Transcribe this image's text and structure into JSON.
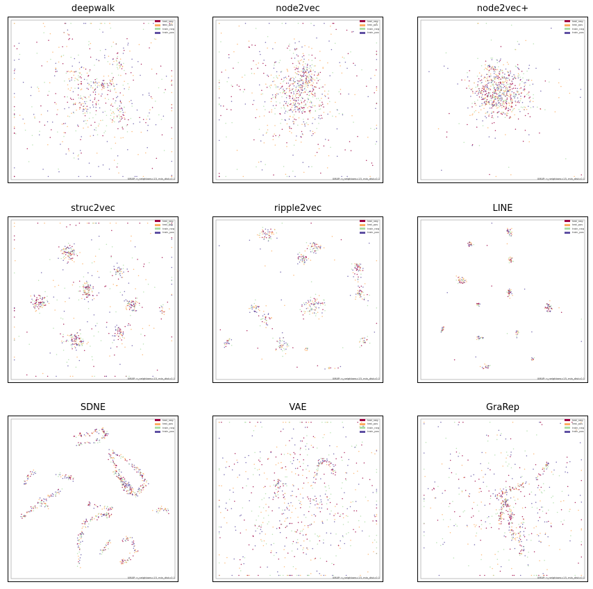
{
  "figure": {
    "legend_labels": [
      "test_neg",
      "test_pos",
      "train_neg",
      "train_pos"
    ],
    "legend_colors": [
      "#9e0142",
      "#fdae61",
      "#abdda4",
      "#5e4fa2"
    ],
    "umap_note": "UMAP: n_neighbors=15, min_dist=0.1"
  },
  "chart_data": [
    {
      "type": "scatter",
      "title": "deepwalk",
      "xlim": [
        0,
        1
      ],
      "ylim": [
        0,
        1
      ],
      "grid": false,
      "legend": "top-right",
      "series": [
        {
          "name": "test_neg"
        },
        {
          "name": "test_pos"
        },
        {
          "name": "train_neg"
        },
        {
          "name": "train_pos"
        }
      ],
      "clusters": [
        {
          "cx": 0.5,
          "cy": 0.52,
          "sx": 0.27,
          "sy": 0.27,
          "n": 420
        },
        {
          "cx": 0.55,
          "cy": 0.6,
          "sx": 0.06,
          "sy": 0.02,
          "n": 60
        },
        {
          "cx": 0.67,
          "cy": 0.42,
          "sx": 0.03,
          "sy": 0.05,
          "n": 50
        },
        {
          "cx": 0.42,
          "cy": 0.47,
          "sx": 0.04,
          "sy": 0.05,
          "n": 50
        },
        {
          "cx": 0.66,
          "cy": 0.72,
          "sx": 0.02,
          "sy": 0.03,
          "n": 25
        },
        {
          "cx": 0.38,
          "cy": 0.67,
          "sx": 0.03,
          "sy": 0.03,
          "n": 25
        }
      ]
    },
    {
      "type": "scatter",
      "title": "node2vec",
      "xlim": [
        0,
        1
      ],
      "ylim": [
        0,
        1
      ],
      "grid": false,
      "legend": "top-right",
      "series": [
        {
          "name": "test_neg"
        },
        {
          "name": "test_pos"
        },
        {
          "name": "train_neg"
        },
        {
          "name": "train_pos"
        }
      ],
      "clusters": [
        {
          "cx": 0.5,
          "cy": 0.5,
          "sx": 0.3,
          "sy": 0.28,
          "n": 320
        },
        {
          "cx": 0.5,
          "cy": 0.55,
          "sx": 0.08,
          "sy": 0.12,
          "n": 380
        },
        {
          "cx": 0.55,
          "cy": 0.65,
          "sx": 0.03,
          "sy": 0.06,
          "n": 90
        }
      ]
    },
    {
      "type": "scatter",
      "title": "node2vec+",
      "xlim": [
        0,
        1
      ],
      "ylim": [
        0,
        1
      ],
      "grid": false,
      "legend": "top-right",
      "series": [
        {
          "name": "test_neg"
        },
        {
          "name": "test_pos"
        },
        {
          "name": "train_neg"
        },
        {
          "name": "train_pos"
        }
      ],
      "clusters": [
        {
          "cx": 0.48,
          "cy": 0.55,
          "sx": 0.09,
          "sy": 0.08,
          "n": 620
        },
        {
          "cx": 0.5,
          "cy": 0.52,
          "sx": 0.22,
          "sy": 0.22,
          "n": 110
        },
        {
          "cx": 0.43,
          "cy": 0.7,
          "sx": 0.02,
          "sy": 0.015,
          "n": 25
        }
      ]
    },
    {
      "type": "scatter",
      "title": "struc2vec",
      "xlim": [
        0,
        1
      ],
      "ylim": [
        0,
        1
      ],
      "grid": false,
      "legend": "top-right",
      "series": [
        {
          "name": "test_neg"
        },
        {
          "name": "test_pos"
        },
        {
          "name": "train_neg"
        },
        {
          "name": "train_pos"
        }
      ],
      "clusters": [
        {
          "cx": 0.5,
          "cy": 0.5,
          "sx": 0.3,
          "sy": 0.3,
          "n": 220
        },
        {
          "cx": 0.35,
          "cy": 0.79,
          "sx": 0.025,
          "sy": 0.025,
          "n": 80
        },
        {
          "cx": 0.47,
          "cy": 0.56,
          "sx": 0.025,
          "sy": 0.025,
          "n": 80
        },
        {
          "cx": 0.17,
          "cy": 0.48,
          "sx": 0.025,
          "sy": 0.025,
          "n": 80
        },
        {
          "cx": 0.74,
          "cy": 0.47,
          "sx": 0.02,
          "sy": 0.02,
          "n": 60
        },
        {
          "cx": 0.4,
          "cy": 0.24,
          "sx": 0.03,
          "sy": 0.025,
          "n": 90
        },
        {
          "cx": 0.66,
          "cy": 0.68,
          "sx": 0.02,
          "sy": 0.02,
          "n": 40
        },
        {
          "cx": 0.66,
          "cy": 0.29,
          "sx": 0.02,
          "sy": 0.02,
          "n": 40
        },
        {
          "cx": 0.92,
          "cy": 0.43,
          "sx": 0.01,
          "sy": 0.02,
          "n": 15
        }
      ]
    },
    {
      "type": "scatter",
      "title": "ripple2vec",
      "xlim": [
        0,
        1
      ],
      "ylim": [
        0,
        1
      ],
      "grid": false,
      "legend": "top-right",
      "series": [
        {
          "name": "test_neg"
        },
        {
          "name": "test_pos"
        },
        {
          "name": "train_neg"
        },
        {
          "name": "train_pos"
        }
      ],
      "clusters": [
        {
          "cx": 0.5,
          "cy": 0.5,
          "sx": 0.3,
          "sy": 0.3,
          "n": 40
        },
        {
          "cx": 0.31,
          "cy": 0.91,
          "sx": 0.025,
          "sy": 0.02,
          "n": 50
        },
        {
          "cx": 0.6,
          "cy": 0.83,
          "sx": 0.025,
          "sy": 0.015,
          "n": 45
        },
        {
          "cx": 0.53,
          "cy": 0.76,
          "sx": 0.02,
          "sy": 0.02,
          "n": 40
        },
        {
          "cx": 0.86,
          "cy": 0.69,
          "sx": 0.02,
          "sy": 0.03,
          "n": 45
        },
        {
          "cx": 0.88,
          "cy": 0.54,
          "sx": 0.02,
          "sy": 0.03,
          "n": 40
        },
        {
          "cx": 0.6,
          "cy": 0.46,
          "sx": 0.04,
          "sy": 0.03,
          "n": 80
        },
        {
          "cx": 0.24,
          "cy": 0.45,
          "sx": 0.015,
          "sy": 0.02,
          "n": 30
        },
        {
          "cx": 0.3,
          "cy": 0.38,
          "sx": 0.02,
          "sy": 0.03,
          "n": 30
        },
        {
          "cx": 0.41,
          "cy": 0.21,
          "sx": 0.02,
          "sy": 0.03,
          "n": 40
        },
        {
          "cx": 0.07,
          "cy": 0.23,
          "sx": 0.015,
          "sy": 0.02,
          "n": 20
        },
        {
          "cx": 0.9,
          "cy": 0.23,
          "sx": 0.015,
          "sy": 0.02,
          "n": 20
        },
        {
          "cx": 0.55,
          "cy": 0.19,
          "sx": 0.01,
          "sy": 0.01,
          "n": 8
        },
        {
          "cx": 0.7,
          "cy": 0.07,
          "sx": 0.015,
          "sy": 0.005,
          "n": 8
        }
      ]
    },
    {
      "type": "scatter",
      "title": "LINE",
      "xlim": [
        0,
        1
      ],
      "ylim": [
        0,
        1
      ],
      "grid": false,
      "legend": "top-right",
      "series": [
        {
          "name": "test_neg"
        },
        {
          "name": "test_pos"
        },
        {
          "name": "train_neg"
        },
        {
          "name": "train_pos"
        }
      ],
      "clusters": [
        {
          "cx": 0.5,
          "cy": 0.5,
          "sx": 0.3,
          "sy": 0.3,
          "n": 15
        },
        {
          "cx": 0.54,
          "cy": 0.92,
          "sx": 0.01,
          "sy": 0.012,
          "n": 25
        },
        {
          "cx": 0.3,
          "cy": 0.85,
          "sx": 0.01,
          "sy": 0.008,
          "n": 20
        },
        {
          "cx": 0.55,
          "cy": 0.75,
          "sx": 0.008,
          "sy": 0.01,
          "n": 20
        },
        {
          "cx": 0.25,
          "cy": 0.62,
          "sx": 0.015,
          "sy": 0.012,
          "n": 35
        },
        {
          "cx": 0.54,
          "cy": 0.54,
          "sx": 0.01,
          "sy": 0.014,
          "n": 30
        },
        {
          "cx": 0.35,
          "cy": 0.47,
          "sx": 0.006,
          "sy": 0.006,
          "n": 12
        },
        {
          "cx": 0.78,
          "cy": 0.45,
          "sx": 0.012,
          "sy": 0.015,
          "n": 35
        },
        {
          "cx": 0.13,
          "cy": 0.31,
          "sx": 0.006,
          "sy": 0.01,
          "n": 15
        },
        {
          "cx": 0.36,
          "cy": 0.26,
          "sx": 0.01,
          "sy": 0.008,
          "n": 18
        },
        {
          "cx": 0.59,
          "cy": 0.29,
          "sx": 0.006,
          "sy": 0.01,
          "n": 12
        },
        {
          "cx": 0.4,
          "cy": 0.08,
          "sx": 0.01,
          "sy": 0.008,
          "n": 15
        },
        {
          "cx": 0.68,
          "cy": 0.13,
          "sx": 0.006,
          "sy": 0.006,
          "n": 8
        }
      ]
    },
    {
      "type": "scatter",
      "title": "SDNE",
      "xlim": [
        0,
        1
      ],
      "ylim": [
        0,
        1
      ],
      "grid": false,
      "legend": "top-right",
      "series": [
        {
          "name": "test_neg"
        },
        {
          "name": "test_pos"
        },
        {
          "name": "train_neg"
        },
        {
          "name": "train_pos"
        }
      ],
      "curves": [
        {
          "pts": [
            [
              0.39,
              0.9
            ],
            [
              0.48,
              0.9
            ],
            [
              0.55,
              0.94
            ],
            [
              0.58,
              0.9
            ],
            [
              0.52,
              0.86
            ],
            [
              0.4,
              0.84
            ]
          ],
          "n": 90
        },
        {
          "pts": [
            [
              0.6,
              0.8
            ],
            [
              0.68,
              0.76
            ],
            [
              0.78,
              0.68
            ],
            [
              0.82,
              0.6
            ],
            [
              0.76,
              0.52
            ],
            [
              0.7,
              0.56
            ],
            [
              0.65,
              0.68
            ],
            [
              0.6,
              0.78
            ]
          ],
          "n": 200
        },
        {
          "pts": [
            [
              0.62,
              0.68
            ],
            [
              0.7,
              0.6
            ],
            [
              0.74,
              0.55
            ]
          ],
          "n": 60
        },
        {
          "pts": [
            [
              0.28,
              0.66
            ],
            [
              0.34,
              0.64
            ],
            [
              0.37,
              0.62
            ]
          ],
          "n": 30
        },
        {
          "pts": [
            [
              0.08,
              0.58
            ],
            [
              0.1,
              0.64
            ],
            [
              0.15,
              0.68
            ]
          ],
          "n": 25
        },
        {
          "pts": [
            [
              0.06,
              0.38
            ],
            [
              0.15,
              0.45
            ],
            [
              0.25,
              0.52
            ],
            [
              0.3,
              0.55
            ]
          ],
          "n": 70
        },
        {
          "pts": [
            [
              0.46,
              0.47
            ],
            [
              0.55,
              0.45
            ],
            [
              0.62,
              0.44
            ]
          ],
          "n": 30
        },
        {
          "pts": [
            [
              0.42,
              0.07
            ],
            [
              0.41,
              0.22
            ],
            [
              0.45,
              0.35
            ],
            [
              0.55,
              0.4
            ],
            [
              0.6,
              0.4
            ]
          ],
          "n": 110
        },
        {
          "pts": [
            [
              0.67,
              0.1
            ],
            [
              0.72,
              0.12
            ],
            [
              0.76,
              0.18
            ],
            [
              0.73,
              0.25
            ],
            [
              0.68,
              0.25
            ]
          ],
          "n": 60
        },
        {
          "pts": [
            [
              0.55,
              0.16
            ],
            [
              0.58,
              0.2
            ],
            [
              0.6,
              0.24
            ]
          ],
          "n": 25
        },
        {
          "pts": [
            [
              0.88,
              0.42
            ],
            [
              0.93,
              0.44
            ],
            [
              0.96,
              0.42
            ]
          ],
          "n": 25
        },
        {
          "pts": [
            [
              0.17,
              0.5
            ],
            [
              0.2,
              0.48
            ],
            [
              0.22,
              0.45
            ]
          ],
          "n": 15
        }
      ]
    },
    {
      "type": "scatter",
      "title": "VAE",
      "xlim": [
        0,
        1
      ],
      "ylim": [
        0,
        1
      ],
      "grid": false,
      "legend": "top-right",
      "series": [
        {
          "name": "test_neg"
        },
        {
          "name": "test_pos"
        },
        {
          "name": "train_neg"
        },
        {
          "name": "train_pos"
        }
      ],
      "clusters": [
        {
          "cx": 0.5,
          "cy": 0.48,
          "sx": 0.25,
          "sy": 0.27,
          "n": 600
        }
      ],
      "curves": [
        {
          "pts": [
            [
              0.6,
              0.6
            ],
            [
              0.63,
              0.72
            ],
            [
              0.66,
              0.75
            ],
            [
              0.7,
              0.72
            ],
            [
              0.72,
              0.66
            ]
          ],
          "n": 60
        },
        {
          "pts": [
            [
              0.36,
              0.48
            ],
            [
              0.37,
              0.58
            ],
            [
              0.38,
              0.62
            ]
          ],
          "n": 25
        }
      ]
    },
    {
      "type": "scatter",
      "title": "GraRep",
      "xlim": [
        0,
        1
      ],
      "ylim": [
        0,
        1
      ],
      "grid": false,
      "legend": "top-right",
      "series": [
        {
          "name": "test_neg"
        },
        {
          "name": "test_pos"
        },
        {
          "name": "train_neg"
        },
        {
          "name": "train_pos"
        }
      ],
      "clusters": [
        {
          "cx": 0.5,
          "cy": 0.5,
          "sx": 0.26,
          "sy": 0.27,
          "n": 380
        }
      ],
      "curves": [
        {
          "pts": [
            [
              0.45,
              0.5
            ],
            [
              0.52,
              0.55
            ],
            [
              0.6,
              0.58
            ],
            [
              0.65,
              0.6
            ]
          ],
          "n": 60
        },
        {
          "pts": [
            [
              0.48,
              0.35
            ],
            [
              0.5,
              0.45
            ],
            [
              0.52,
              0.5
            ],
            [
              0.55,
              0.42
            ],
            [
              0.55,
              0.32
            ],
            [
              0.57,
              0.24
            ]
          ],
          "n": 130
        },
        {
          "pts": [
            [
              0.62,
              0.38
            ],
            [
              0.6,
              0.28
            ],
            [
              0.62,
              0.18
            ],
            [
              0.6,
              0.15
            ]
          ],
          "n": 40
        },
        {
          "pts": [
            [
              0.7,
              0.62
            ],
            [
              0.74,
              0.68
            ],
            [
              0.78,
              0.72
            ]
          ],
          "n": 30
        }
      ]
    }
  ]
}
